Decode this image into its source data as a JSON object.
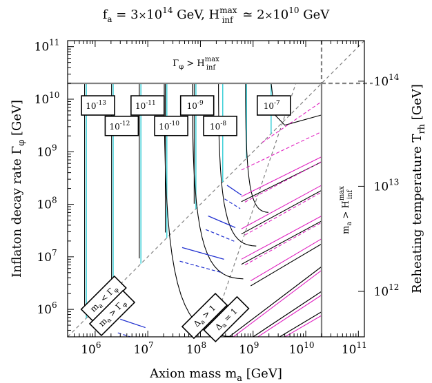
{
  "chart_data": {
    "type": "line",
    "title": "f_a = 3×10^14 GeV,  H_inf^max ≃ 2×10^10 GeV",
    "title_parts": {
      "fa_sym": "f",
      "fa_sub": "a",
      "fa_val": " = 3",
      "times": "×",
      "fa_base": "10",
      "fa_exp": "14",
      "fa_unit": " GeV,  ",
      "h_sym": "H",
      "h_sup": "max",
      "h_sub": "inf",
      "h_rel": " ≃ 2",
      "h_times": "×",
      "h_base": "10",
      "h_exp": "10",
      "h_unit": " GeV"
    },
    "xlabel": "Axion mass  m_a [GeV]",
    "xlabel_parts": {
      "main": "Axion mass  m",
      "sub": "a",
      "unit": " [GeV]"
    },
    "ylabel": "Inflaton decay rate  Γ_φ [GeV]",
    "ylabel_parts": {
      "main": "Inflaton decay rate  Γ",
      "sub": "φ",
      "unit": " [GeV]"
    },
    "y2label": "Reheating temperature  T_rh [GeV]",
    "y2label_parts": {
      "main": "Reheating temperature  T",
      "sub": "rh",
      "unit": " [GeV]"
    },
    "xscale": "log",
    "yscale": "log",
    "xlim": [
      300000.0,
      130000000000.0
    ],
    "ylim": [
      300000.0,
      130000000000.0
    ],
    "xticks": [
      {
        "base": "10",
        "exp": "6",
        "value": 1000000.0
      },
      {
        "base": "10",
        "exp": "7",
        "value": 10000000.0
      },
      {
        "base": "10",
        "exp": "8",
        "value": 100000000.0
      },
      {
        "base": "10",
        "exp": "9",
        "value": 1000000000.0
      },
      {
        "base": "10",
        "exp": "10",
        "value": 10000000000.0
      },
      {
        "base": "10",
        "exp": "11",
        "value": 100000000000.0
      }
    ],
    "yticks": [
      {
        "base": "10",
        "exp": "6",
        "value": 1000000.0
      },
      {
        "base": "10",
        "exp": "7",
        "value": 10000000.0
      },
      {
        "base": "10",
        "exp": "8",
        "value": 100000000.0
      },
      {
        "base": "10",
        "exp": "9",
        "value": 1000000000.0
      },
      {
        "base": "10",
        "exp": "10",
        "value": 10000000000.0
      },
      {
        "base": "10",
        "exp": "11",
        "value": 100000000000.0
      }
    ],
    "y2ticks": [
      {
        "base": "10",
        "exp": "12",
        "gamma": 2200000.0
      },
      {
        "base": "10",
        "exp": "13",
        "gamma": 220000000.0
      },
      {
        "base": "10",
        "exp": "14",
        "gamma": 22000000000.0
      }
    ],
    "h_inf_max": 20000000000.0,
    "region_labels": {
      "top": {
        "sym": "Γ",
        "sub": "φ",
        "rel": " > H",
        "sup": "max",
        "sub2": "inf"
      },
      "right": {
        "sym": "m",
        "sub": "a",
        "rel": " > H",
        "sup": "max",
        "sub2": "inf"
      }
    },
    "diagonal_labels": [
      {
        "key": "lt",
        "sym": "m",
        "sub": "a",
        "rel": " < Γ",
        "sub2": "φ",
        "x": 1450000.0,
        "y": 1600000.0
      },
      {
        "key": "gt",
        "sym": "m",
        "sub": "a",
        "rel": " > Γ",
        "sub2": "φ",
        "x": 2100000.0,
        "y": 850000.0
      },
      {
        "key": "d1",
        "sym": "Δ",
        "sub": "a",
        "rel": " > 1",
        "x": 120000000.0,
        "y": 750000.0
      },
      {
        "key": "d2",
        "sym": "Δ",
        "sub": "a",
        "rel": " = 1",
        "x": 310000000.0,
        "y": 650000.0
      }
    ],
    "contour_labels": [
      {
        "base": "10",
        "exp": "-13",
        "x": 550000.0,
        "y": 7600000000.0
      },
      {
        "base": "10",
        "exp": "-12",
        "x": 1550000.0,
        "y": 3100000000.0
      },
      {
        "base": "10",
        "exp": "-11",
        "x": 4800000.0,
        "y": 7600000000.0
      },
      {
        "base": "10",
        "exp": "-10",
        "x": 13500000.0,
        "y": 3100000000.0
      },
      {
        "base": "10",
        "exp": "-9",
        "x": 42000000.0,
        "y": 7600000000.0
      },
      {
        "base": "10",
        "exp": "-8",
        "x": 115000000.0,
        "y": 3100000000.0
      },
      {
        "base": "10",
        "exp": "-7",
        "x": 1200000000.0,
        "y": 7600000000.0
      }
    ],
    "cyan_lines_x": [
      680000.0,
      2200000.0,
      7400000.0,
      23000000.0,
      82000000.0,
      265000000.0,
      750000000.0,
      2200000000.0
    ],
    "black_lines_x": [
      630000.0,
      2050000.0,
      6900000.0,
      21500000.0,
      76000000.0
    ],
    "colors": {
      "frame": "#000000",
      "boundary": "#808080",
      "diagonal": "#808080",
      "cyan": "#3FD0D8",
      "black": "#000000",
      "blue": "#2030D0",
      "magenta": "#E020C0"
    }
  }
}
